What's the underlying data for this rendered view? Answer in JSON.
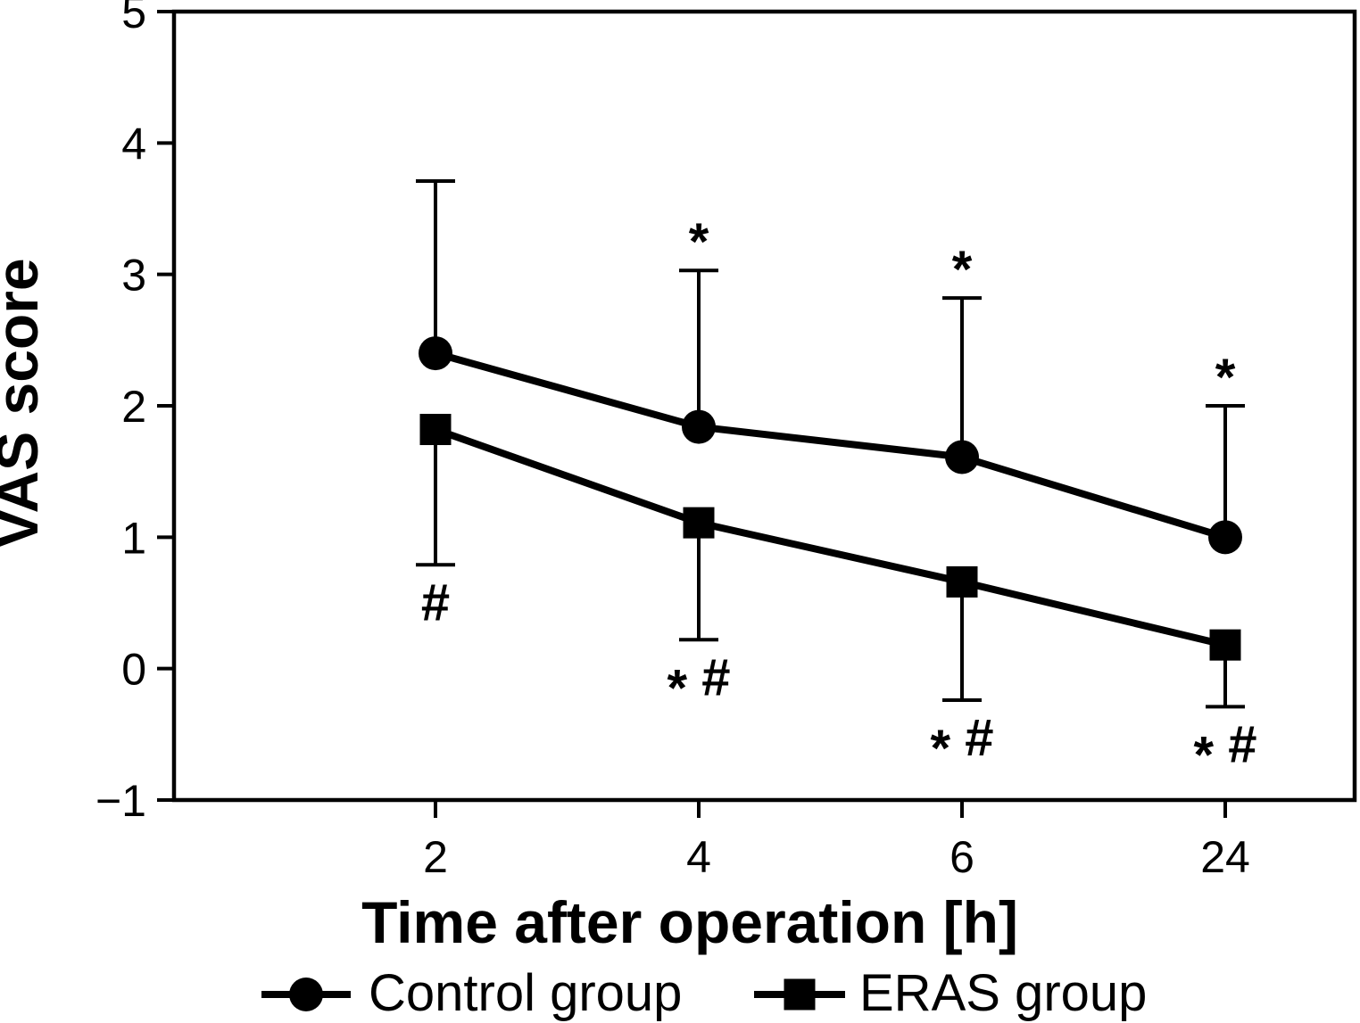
{
  "figure": {
    "background": "#ffffff",
    "ink_color": "#000000"
  },
  "chart_data": {
    "type": "line",
    "title": "",
    "xlabel": "Time after operation [h]",
    "ylabel": "VAS score",
    "categories": [
      "2",
      "4",
      "6",
      "24"
    ],
    "ylim": [
      -1,
      5
    ],
    "yticks": [
      -1,
      0,
      1,
      2,
      3,
      4,
      5
    ],
    "ytick_labels": [
      "−1",
      "0",
      "1",
      "2",
      "3",
      "4",
      "5"
    ],
    "grid": false,
    "legend_position": "bottom-center",
    "series": [
      {
        "name": "Control group",
        "marker": "circle",
        "color": "#000000",
        "values": [
          2.4,
          1.84,
          1.61,
          1.0
        ],
        "error_direction": "up",
        "error_values": [
          1.31,
          1.19,
          1.21,
          1.0
        ],
        "point_annotations": [
          "",
          "*",
          "*",
          "*"
        ]
      },
      {
        "name": "ERAS group",
        "marker": "square",
        "color": "#000000",
        "values": [
          1.82,
          1.11,
          0.66,
          0.18
        ],
        "error_direction": "down",
        "error_values": [
          1.03,
          0.89,
          0.9,
          0.47
        ],
        "point_annotations": [
          "#",
          "* #",
          "* #",
          "* #"
        ]
      }
    ]
  }
}
